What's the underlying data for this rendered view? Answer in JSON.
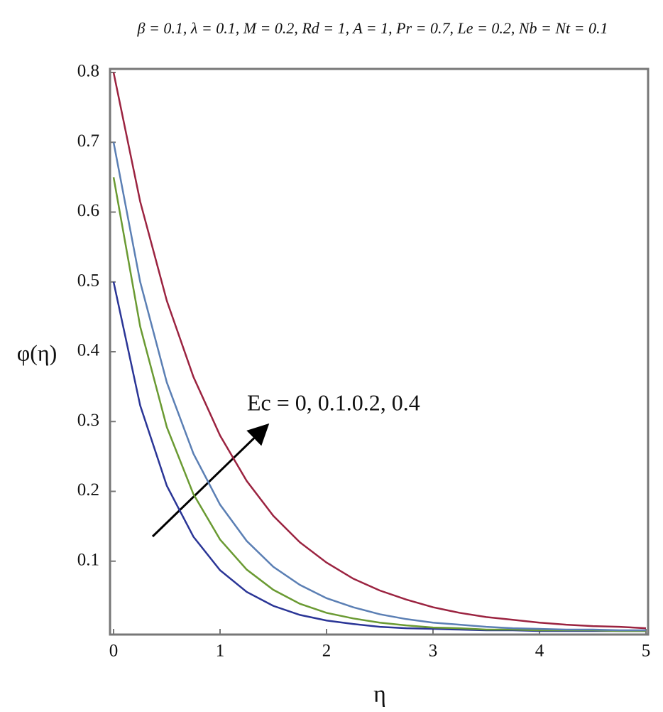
{
  "chart_data": {
    "type": "line",
    "subtitle": "β = 0.1, λ = 0.1, M = 0.2, Rd = 1, A = 1, Pr = 0.7, Le = 0.2, Nb = Nt = 0.1",
    "x_label": "η",
    "y_label": "φ(η)",
    "annotation": "Ec = 0, 0.1.0.2, 0.4",
    "x": [
      0,
      0.25,
      0.5,
      0.75,
      1,
      1.25,
      1.5,
      1.75,
      2,
      2.25,
      2.5,
      2.75,
      3,
      3.25,
      3.5,
      3.75,
      4,
      4.25,
      4.5,
      4.75,
      5
    ],
    "series": [
      {
        "color": "#2a3596",
        "values": [
          0.5,
          0.323,
          0.208,
          0.135,
          0.087,
          0.056,
          0.036,
          0.023,
          0.015,
          0.01,
          0.006,
          0.004,
          0.003,
          0.002,
          0.001,
          0.001,
          0,
          0,
          0,
          0,
          0
        ]
      },
      {
        "color": "#6a9a32",
        "values": [
          0.65,
          0.436,
          0.292,
          0.196,
          0.131,
          0.088,
          0.059,
          0.039,
          0.026,
          0.018,
          0.012,
          0.008,
          0.005,
          0.004,
          0.002,
          0.002,
          0.001,
          0.001,
          0.001,
          0,
          0
        ]
      },
      {
        "color": "#5b7fb4",
        "values": [
          0.7,
          0.5,
          0.356,
          0.254,
          0.181,
          0.129,
          0.092,
          0.066,
          0.047,
          0.034,
          0.024,
          0.017,
          0.012,
          0.009,
          0.006,
          0.004,
          0.003,
          0.002,
          0.002,
          0.001,
          0.001
        ]
      },
      {
        "color": "#9b2340",
        "values": [
          0.8,
          0.615,
          0.473,
          0.364,
          0.28,
          0.215,
          0.165,
          0.127,
          0.098,
          0.075,
          0.058,
          0.045,
          0.034,
          0.026,
          0.02,
          0.016,
          0.012,
          0.009,
          0.007,
          0.006,
          0.004
        ]
      }
    ],
    "xlim": [
      0,
      5
    ],
    "ylim": [
      0,
      0.8
    ],
    "xticks": [
      0,
      1,
      2,
      3,
      4,
      5
    ],
    "yticks": [
      0.1,
      0.2,
      0.3,
      0.4,
      0.5,
      0.6,
      0.7,
      0.8
    ],
    "grid": false
  }
}
